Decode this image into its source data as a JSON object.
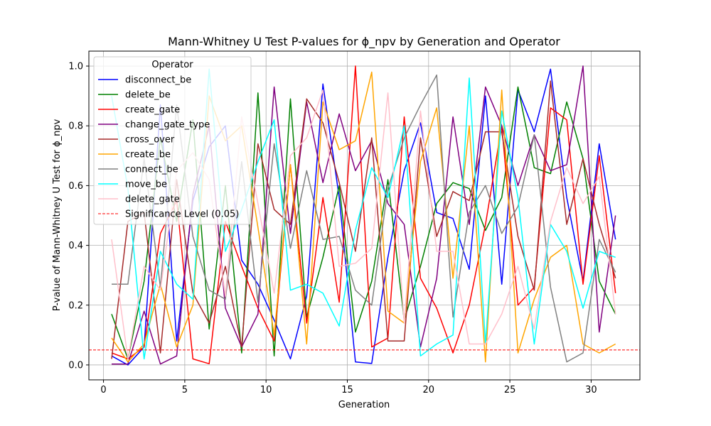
{
  "chart_data": {
    "type": "line",
    "title": "Mann-Whitney U Test P-values for ϕ_npv by Generation and Operator",
    "xlabel": "Generation",
    "ylabel": "P-value of Mann-Whitney U Test for ϕ_npv",
    "xlim": [
      -0.9,
      33.0
    ],
    "ylim": [
      -0.05,
      1.05
    ],
    "x_ticks": [
      0,
      5,
      10,
      15,
      20,
      25,
      30
    ],
    "y_ticks": [
      0.0,
      0.2,
      0.4,
      0.6,
      0.8,
      1.0
    ],
    "x_tick_labels": [
      "0",
      "5",
      "10",
      "15",
      "20",
      "25",
      "30"
    ],
    "y_tick_labels": [
      "0.0",
      "0.2",
      "0.4",
      "0.6",
      "0.8",
      "1.0"
    ],
    "grid": true,
    "legend_title": "Operator",
    "legend_position": "upper-left",
    "x": [
      0.5,
      1.5,
      2.5,
      3.5,
      4.5,
      5.5,
      6.5,
      7.5,
      8.5,
      9.5,
      10.5,
      11.5,
      12.5,
      13.5,
      14.5,
      15.5,
      16.5,
      17.5,
      18.5,
      19.5,
      20.5,
      21.5,
      22.5,
      23.5,
      24.5,
      25.5,
      26.5,
      27.5,
      28.5,
      29.5,
      30.5,
      31.5
    ],
    "series": [
      {
        "name": "disconnect_be",
        "color": "#0000ff",
        "values": [
          0.03,
          0.0,
          0.06,
          0.87,
          0.08,
          0.55,
          0.73,
          0.8,
          0.35,
          0.27,
          0.15,
          0.02,
          0.23,
          0.94,
          0.56,
          0.01,
          0.005,
          0.36,
          0.65,
          0.81,
          0.51,
          0.49,
          0.32,
          0.9,
          0.27,
          0.92,
          0.78,
          0.99,
          0.56,
          0.28,
          0.74,
          0.42
        ]
      },
      {
        "name": "delete_be",
        "color": "#008000",
        "values": [
          0.17,
          0.02,
          0.28,
          0.76,
          0.48,
          0.82,
          0.12,
          0.6,
          0.04,
          0.91,
          0.03,
          0.89,
          0.16,
          0.36,
          0.6,
          0.11,
          0.28,
          0.62,
          0.15,
          0.33,
          0.54,
          0.61,
          0.59,
          0.45,
          0.56,
          0.93,
          0.66,
          0.64,
          0.88,
          0.69,
          0.28,
          0.17
        ]
      },
      {
        "name": "create_gate",
        "color": "#ff0000",
        "values": [
          0.04,
          0.02,
          0.06,
          0.44,
          0.55,
          0.02,
          0.004,
          0.48,
          0.33,
          0.19,
          0.08,
          0.67,
          0.14,
          0.56,
          0.21,
          1.0,
          0.06,
          0.09,
          0.83,
          0.29,
          0.19,
          0.04,
          0.2,
          0.47,
          0.8,
          0.2,
          0.26,
          0.86,
          0.82,
          0.27,
          0.7,
          0.24
        ]
      },
      {
        "name": "change_gate_type",
        "color": "#800080",
        "values": [
          0.003,
          0.003,
          0.18,
          0.003,
          0.03,
          0.57,
          0.8,
          0.19,
          0.06,
          0.17,
          0.93,
          0.44,
          0.88,
          0.61,
          0.84,
          0.65,
          0.75,
          0.54,
          0.47,
          0.06,
          0.29,
          0.83,
          0.47,
          0.93,
          0.8,
          0.6,
          0.77,
          0.65,
          0.67,
          1.0,
          0.11,
          0.5
        ]
      },
      {
        "name": "cross_over",
        "color": "#a52a2a",
        "values": [
          0.02,
          0.48,
          0.51,
          0.04,
          0.62,
          0.24,
          0.14,
          0.33,
          0.06,
          0.74,
          0.52,
          0.47,
          0.89,
          0.81,
          0.61,
          0.38,
          0.76,
          0.08,
          0.08,
          0.76,
          0.43,
          0.58,
          0.55,
          0.78,
          0.78,
          0.43,
          0.25,
          0.95,
          0.47,
          0.69,
          0.47,
          0.29
        ]
      },
      {
        "name": "create_be",
        "color": "#ffa500",
        "values": [
          0.09,
          0.01,
          0.07,
          0.27,
          0.06,
          0.2,
          0.9,
          0.75,
          0.8,
          0.46,
          0.1,
          0.67,
          0.07,
          0.88,
          0.72,
          0.75,
          0.98,
          0.18,
          0.14,
          0.68,
          0.86,
          0.29,
          0.8,
          0.01,
          0.92,
          0.04,
          0.22,
          0.36,
          0.4,
          0.07,
          0.04,
          0.07
        ]
      },
      {
        "name": "connect_be",
        "color": "#808080",
        "values": [
          0.27,
          0.27,
          0.69,
          0.26,
          0.87,
          0.43,
          0.25,
          0.22,
          0.68,
          0.21,
          0.74,
          0.39,
          0.65,
          0.42,
          0.43,
          0.25,
          0.2,
          0.59,
          0.76,
          0.87,
          0.97,
          0.16,
          0.51,
          0.6,
          0.44,
          0.53,
          0.77,
          0.26,
          0.01,
          0.04,
          0.42,
          0.31
        ]
      },
      {
        "name": "move_be",
        "color": "#00ffff",
        "values": [
          0.9,
          0.59,
          0.02,
          0.38,
          0.27,
          0.22,
          0.99,
          0.38,
          0.52,
          0.68,
          0.82,
          0.25,
          0.27,
          0.24,
          0.13,
          0.45,
          0.66,
          0.56,
          0.8,
          0.03,
          0.07,
          0.1,
          0.96,
          0.07,
          0.85,
          0.56,
          0.07,
          0.47,
          0.38,
          0.19,
          0.38,
          0.36
        ]
      },
      {
        "name": "delete_gate",
        "color": "#ffc0cb",
        "values": [
          0.42,
          0.02,
          0.33,
          0.25,
          0.65,
          0.71,
          0.62,
          0.23,
          0.83,
          0.54,
          0.24,
          0.7,
          0.76,
          0.92,
          0.33,
          0.34,
          0.39,
          0.91,
          0.14,
          0.85,
          0.38,
          0.38,
          0.07,
          0.07,
          0.17,
          0.33,
          0.12,
          0.48,
          0.66,
          0.54,
          0.63,
          0.17
        ]
      }
    ],
    "reference_line": {
      "name": "Significance Level (0.05)",
      "y": 0.05,
      "color": "#ff0000",
      "style": "dashed"
    }
  }
}
